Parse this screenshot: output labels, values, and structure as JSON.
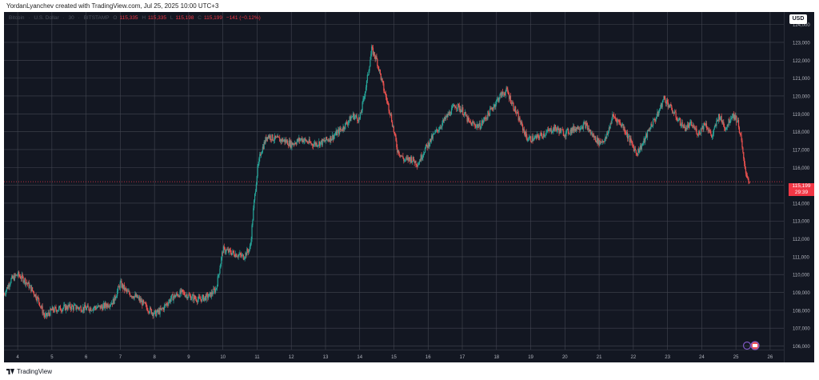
{
  "attribution": "YordanLyanchev created with TradingView.com, Jul 25, 2025 10:00 UTC+3",
  "footer_brand": "TradingView",
  "symbol": {
    "name": "Bitcoin",
    "quote": "U.S. Dollar",
    "interval": "30",
    "exchange": "BITSTAMP",
    "open_key": "O",
    "open": "115,335",
    "high_key": "H",
    "high": "115,335",
    "low_key": "L",
    "low": "115,198",
    "close_key": "C",
    "close": "115,199",
    "change": "−141 (−0.12%)"
  },
  "currency": "USD",
  "last_price": "115,199",
  "countdown": "29:39",
  "colors": {
    "background": "#131722",
    "grid": "#434651",
    "up": "#26a69a",
    "down": "#ef5350",
    "price_tag": "#f23645",
    "axis_text": "#b2b5be"
  },
  "chart_data": {
    "type": "candlestick",
    "x_tick_labels": [
      "4",
      "5",
      "6",
      "7",
      "8",
      "9",
      "10",
      "11",
      "12",
      "13",
      "14",
      "15",
      "16",
      "17",
      "18",
      "19",
      "20",
      "21",
      "22",
      "23",
      "24",
      "25",
      "26"
    ],
    "y_tick_labels": [
      "106,000",
      "107,000",
      "108,000",
      "109,000",
      "110,000",
      "111,000",
      "112,000",
      "113,000",
      "114,000",
      "115,000",
      "116,000",
      "117,000",
      "118,000",
      "119,000",
      "120,000",
      "121,000",
      "122,000",
      "123,000",
      "124,000"
    ],
    "ylim": [
      105800,
      124700
    ],
    "xlim": [
      3.6,
      26.4
    ],
    "grid": true,
    "price_path": [
      [
        3.6,
        108900
      ],
      [
        3.8,
        109700
      ],
      [
        4.0,
        110000
      ],
      [
        4.2,
        109700
      ],
      [
        4.4,
        109200
      ],
      [
        4.6,
        108600
      ],
      [
        4.8,
        107600
      ],
      [
        5.0,
        108000
      ],
      [
        5.5,
        108200
      ],
      [
        6.0,
        108100
      ],
      [
        6.5,
        108200
      ],
      [
        6.8,
        108500
      ],
      [
        7.0,
        109500
      ],
      [
        7.2,
        109000
      ],
      [
        7.5,
        108700
      ],
      [
        7.8,
        108100
      ],
      [
        8.0,
        107800
      ],
      [
        8.2,
        108000
      ],
      [
        8.5,
        108700
      ],
      [
        8.8,
        109000
      ],
      [
        9.0,
        108800
      ],
      [
        9.3,
        108600
      ],
      [
        9.6,
        108800
      ],
      [
        9.8,
        109200
      ],
      [
        10.0,
        111400
      ],
      [
        10.3,
        111200
      ],
      [
        10.6,
        111000
      ],
      [
        10.8,
        111500
      ],
      [
        10.9,
        113800
      ],
      [
        11.0,
        115700
      ],
      [
        11.1,
        116800
      ],
      [
        11.3,
        117800
      ],
      [
        11.5,
        117600
      ],
      [
        11.8,
        117500
      ],
      [
        12.0,
        117300
      ],
      [
        12.3,
        117600
      ],
      [
        12.6,
        117300
      ],
      [
        12.9,
        117400
      ],
      [
        13.2,
        117700
      ],
      [
        13.5,
        118200
      ],
      [
        13.8,
        118900
      ],
      [
        14.0,
        118700
      ],
      [
        14.2,
        120700
      ],
      [
        14.35,
        122600
      ],
      [
        14.5,
        122000
      ],
      [
        14.7,
        120400
      ],
      [
        14.9,
        119000
      ],
      [
        15.1,
        117000
      ],
      [
        15.3,
        116400
      ],
      [
        15.5,
        116500
      ],
      [
        15.7,
        116200
      ],
      [
        15.9,
        117000
      ],
      [
        16.2,
        117900
      ],
      [
        16.5,
        118700
      ],
      [
        16.8,
        119500
      ],
      [
        17.0,
        119200
      ],
      [
        17.2,
        118500
      ],
      [
        17.5,
        118300
      ],
      [
        17.8,
        119100
      ],
      [
        18.1,
        120000
      ],
      [
        18.3,
        120300
      ],
      [
        18.5,
        119400
      ],
      [
        18.7,
        118500
      ],
      [
        18.9,
        117600
      ],
      [
        19.1,
        117600
      ],
      [
        19.4,
        117900
      ],
      [
        19.7,
        118200
      ],
      [
        20.0,
        117900
      ],
      [
        20.3,
        118200
      ],
      [
        20.6,
        118400
      ],
      [
        20.8,
        117800
      ],
      [
        21.0,
        117400
      ],
      [
        21.2,
        117600
      ],
      [
        21.4,
        118900
      ],
      [
        21.7,
        118300
      ],
      [
        21.9,
        117500
      ],
      [
        22.1,
        116800
      ],
      [
        22.3,
        117400
      ],
      [
        22.5,
        118300
      ],
      [
        22.7,
        118900
      ],
      [
        22.9,
        119900
      ],
      [
        23.1,
        119300
      ],
      [
        23.3,
        118700
      ],
      [
        23.5,
        118200
      ],
      [
        23.7,
        118400
      ],
      [
        23.9,
        117900
      ],
      [
        24.1,
        118500
      ],
      [
        24.3,
        117700
      ],
      [
        24.5,
        118900
      ],
      [
        24.7,
        118200
      ],
      [
        24.9,
        119000
      ],
      [
        25.05,
        118600
      ],
      [
        25.15,
        117600
      ],
      [
        25.25,
        116000
      ],
      [
        25.35,
        115400
      ],
      [
        25.4,
        115199
      ]
    ],
    "last_price": 115199
  }
}
